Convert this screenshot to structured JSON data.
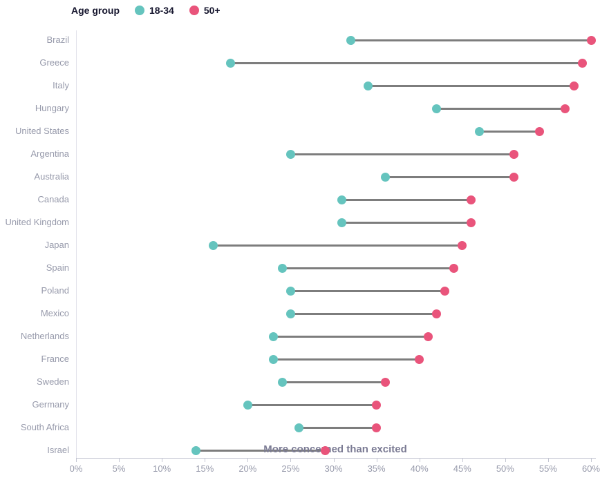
{
  "legend": {
    "title": "Age group",
    "items": [
      {
        "label": "18-34",
        "color": "#65c4be"
      },
      {
        "label": "50+",
        "color": "#e9547b"
      }
    ]
  },
  "colors": {
    "series_18_34": "#65c4be",
    "series_50plus": "#e9547b",
    "connector_line": "#7d7d7d",
    "axis_line": "#c4c6d2",
    "label_text": "#979aab",
    "annotation_text": "#7b7b94"
  },
  "chart_data": {
    "type": "dumbbell",
    "title": "",
    "xlabel": "More concerned than excited",
    "ylabel": "",
    "categories": [
      "Brazil",
      "Greece",
      "Italy",
      "Hungary",
      "United States",
      "Argentina",
      "Australia",
      "Canada",
      "United Kingdom",
      "Japan",
      "Spain",
      "Poland",
      "Mexico",
      "Netherlands",
      "France",
      "Sweden",
      "Germany",
      "South Africa",
      "Israel"
    ],
    "series": [
      {
        "name": "18-34",
        "color": "#65c4be",
        "values": [
          32,
          18,
          34,
          42,
          47,
          25,
          36,
          31,
          31,
          16,
          24,
          25,
          25,
          23,
          23,
          24,
          20,
          26,
          14
        ]
      },
      {
        "name": "50+",
        "color": "#e9547b",
        "values": [
          60,
          59,
          58,
          57,
          54,
          51,
          51,
          46,
          46,
          45,
          44,
          43,
          42,
          41,
          40,
          36,
          35,
          35,
          29
        ]
      }
    ],
    "xlim": [
      0,
      60
    ],
    "x_tick_step": 5,
    "x_ticks": [
      "0%",
      "5%",
      "10%",
      "15%",
      "20%",
      "25%",
      "30%",
      "35%",
      "40%",
      "45%",
      "50%",
      "55%",
      "60%"
    ],
    "grid": false,
    "legend_position": "top-left",
    "unit": "%"
  }
}
